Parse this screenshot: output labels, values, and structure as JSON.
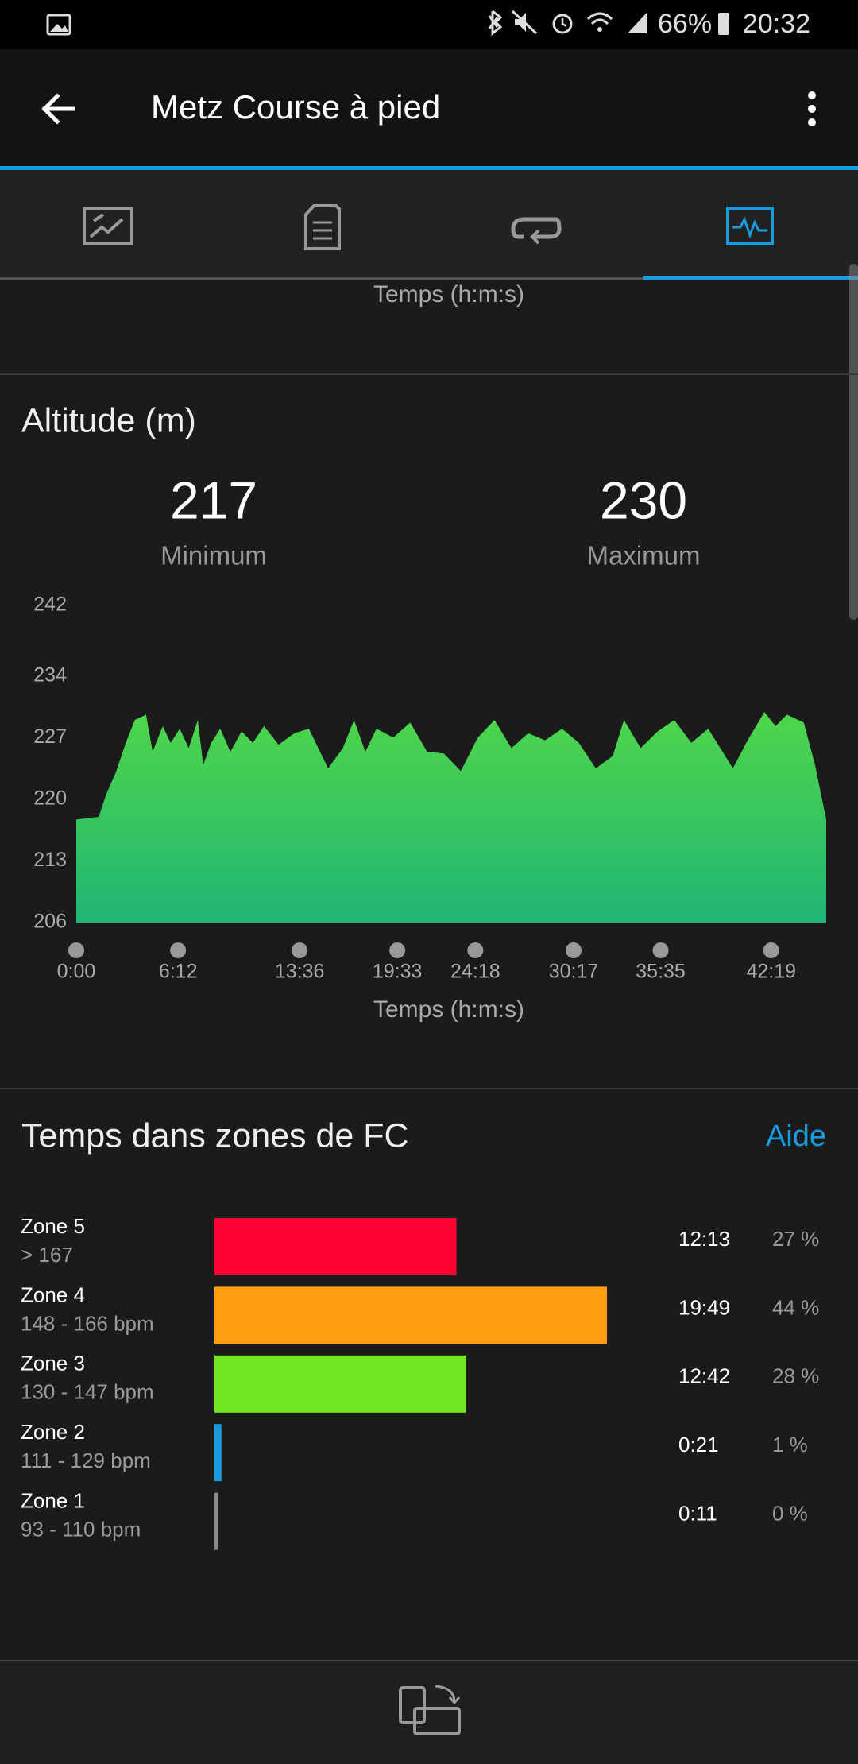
{
  "status_bar": {
    "battery": "66%",
    "time": "20:32"
  },
  "app_bar": {
    "title": "Metz Course à pied"
  },
  "previous_chart_x_label": "Temps (h:m:s)",
  "chart_data": {
    "type": "area",
    "title": "Altitude (m)",
    "summary": [
      {
        "name": "Minimum",
        "value": 217
      },
      {
        "name": "Maximum",
        "value": 230
      }
    ],
    "xlabel": "Temps (h:m:s)",
    "x": [
      0,
      82,
      111,
      144,
      181,
      214,
      255,
      279,
      316,
      345,
      378,
      411,
      444,
      464,
      493,
      526,
      563,
      604,
      645,
      686,
      739,
      797,
      850,
      920,
      974,
      1015,
      1056,
      1097,
      1158,
      1220,
      1282,
      1343,
      1405,
      1467,
      1528,
      1590,
      1651,
      1713,
      1775,
      1836,
      1898,
      1960,
      2001,
      2062,
      2124,
      2185,
      2247,
      2309,
      2399,
      2453,
      2514,
      2555,
      2596,
      2658,
      2699,
      2740
    ],
    "series": [
      {
        "name": "Altitude",
        "color": "#4fd64a",
        "values": [
          217.7,
          218,
          220.7,
          223,
          226.4,
          229,
          229.6,
          225.4,
          228.3,
          226.4,
          228,
          225.8,
          229,
          223.9,
          226.4,
          228,
          225.4,
          227.7,
          226.4,
          228.3,
          226.2,
          227.5,
          228,
          223.5,
          225.8,
          229,
          225.4,
          228,
          227,
          228.7,
          225.4,
          225.2,
          223.2,
          227,
          229,
          225.8,
          227.5,
          226.7,
          228,
          226.4,
          223.5,
          224.9,
          229,
          225.8,
          227.7,
          229,
          226.4,
          228,
          223.5,
          226.7,
          229.9,
          228.3,
          229.6,
          228.7,
          223.9,
          217.7
        ]
      }
    ],
    "xlim": [
      0,
      2740
    ],
    "xticks": [
      {
        "value": 0,
        "label": "0:00"
      },
      {
        "value": 372,
        "label": "6:12"
      },
      {
        "value": 816,
        "label": "13:36"
      },
      {
        "value": 1173,
        "label": "19:33"
      },
      {
        "value": 1458,
        "label": "24:18"
      },
      {
        "value": 1817,
        "label": "30:17"
      },
      {
        "value": 2135,
        "label": "35:35"
      },
      {
        "value": 2539,
        "label": "42:19"
      }
    ],
    "ylim": [
      206,
      242
    ],
    "yticks": [
      206,
      213,
      220,
      227,
      234,
      242
    ],
    "grid": false
  },
  "hr_zones": {
    "title": "Temps dans zones de FC",
    "help": "Aide",
    "zones": [
      {
        "name": "Zone 5",
        "range": "> 167",
        "color": "#ff0033",
        "time": {
          "value": 733,
          "label": "12:13"
        },
        "percent": {
          "value": 27,
          "label": "27 %"
        }
      },
      {
        "name": "Zone 4",
        "range": "148 - 166 bpm",
        "color": "#ff9c10",
        "time": {
          "value": 1189,
          "label": "19:49"
        },
        "percent": {
          "value": 44,
          "label": "44 %"
        }
      },
      {
        "name": "Zone 3",
        "range": "130 - 147 bpm",
        "color": "#72e620",
        "time": {
          "value": 762,
          "label": "12:42"
        },
        "percent": {
          "value": 28,
          "label": "28 %"
        }
      },
      {
        "name": "Zone 2",
        "range": "111 - 129 bpm",
        "color": "#1a9be0",
        "time": {
          "value": 21,
          "label": "0:21"
        },
        "percent": {
          "value": 1,
          "label": "1 %"
        }
      },
      {
        "name": "Zone 1",
        "range": "93 - 110 bpm",
        "color": "#8a8a8a",
        "time": {
          "value": 11,
          "label": "0:11"
        },
        "percent": {
          "value": 0,
          "label": "0 %"
        }
      }
    ]
  }
}
